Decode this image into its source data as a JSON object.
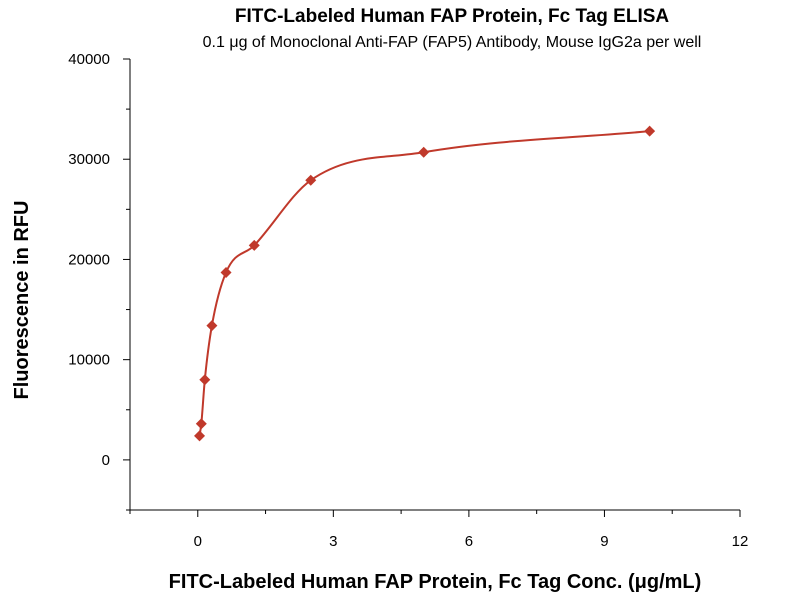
{
  "chart_data": {
    "type": "scatter",
    "title": "FITC-Labeled Human FAP Protein, Fc Tag ELISA",
    "subtitle": "0.1 μg of Monoclonal Anti-FAP (FAP5) Antibody, Mouse IgG2a per well",
    "xlabel": "FITC-Labeled Human FAP Protein, Fc Tag Conc. (μg/mL)",
    "ylabel": "Fluorescence in RFU",
    "xlim": [
      -1.5,
      12
    ],
    "ylim": [
      -5000,
      40000
    ],
    "xticks": [
      0,
      3,
      6,
      9,
      12
    ],
    "xtick_labels": [
      "0",
      "3",
      "6",
      "9",
      "12"
    ],
    "yticks": [
      0,
      10000,
      20000,
      30000,
      40000
    ],
    "ytick_labels": [
      "0",
      "10000",
      "20000",
      "30000",
      "40000"
    ],
    "grid": false,
    "legend": "none",
    "marker": "diamond",
    "color": "#c0392b",
    "series": [
      {
        "x": [
          0.039,
          0.078,
          0.156,
          0.3125,
          0.625,
          1.25,
          2.5,
          5,
          10
        ],
        "y": [
          2400,
          3600,
          8000,
          13400,
          18700,
          21400,
          27900,
          30700,
          32800
        ]
      }
    ],
    "fit_curve": true
  }
}
